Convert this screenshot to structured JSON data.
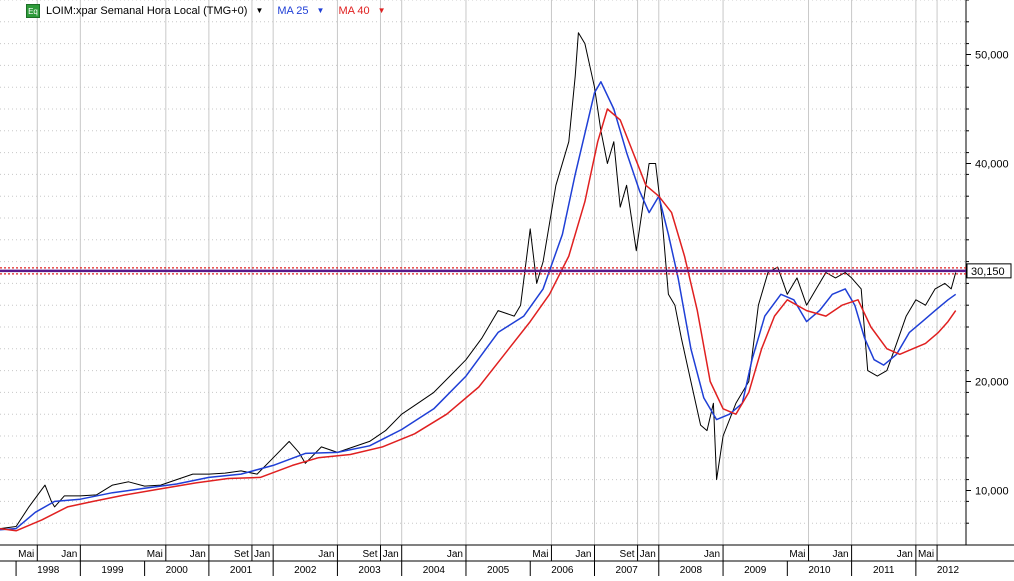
{
  "legend": {
    "icon_label": "Eq",
    "instrument": "LOIM:xpar Semanal Hora Local (TMG+0)",
    "ma25_label": "MA 25",
    "ma40_label": "MA 40",
    "caret": "▼"
  },
  "colors": {
    "price": "#000000",
    "ma25": "#1f3fd6",
    "ma40": "#e02020",
    "level_line": "#5a1a8a",
    "level_dots": "#e02020",
    "grid": "#c8c8c8",
    "level_label_bg": "#ffffff"
  },
  "chart_data": {
    "type": "line",
    "yscale": "linear",
    "ylim": [
      5000,
      55000
    ],
    "xlim": [
      1997.75,
      2012.78
    ],
    "y_ticks": [
      10000,
      20000,
      30000,
      40000,
      50000
    ],
    "y_tick_labels": [
      "10,000",
      "20,000",
      "30,000",
      "40,000",
      "50,000"
    ],
    "grid": true,
    "level": {
      "value": 30150,
      "label": "30,150"
    },
    "x_month_labels": [
      {
        "label": "Mai",
        "x": 1998.33
      },
      {
        "label": "Jan",
        "x": 1999.0
      },
      {
        "label": "Mai",
        "x": 2000.33
      },
      {
        "label": "Jan",
        "x": 2001.0
      },
      {
        "label": "Set",
        "x": 2001.67
      },
      {
        "label": "Jan",
        "x": 2002.0
      },
      {
        "label": "Jan",
        "x": 2003.0
      },
      {
        "label": "Set",
        "x": 2003.67
      },
      {
        "label": "Jan",
        "x": 2004.0
      },
      {
        "label": "Jan",
        "x": 2005.0
      },
      {
        "label": "Mai",
        "x": 2006.33
      },
      {
        "label": "Jan",
        "x": 2007.0
      },
      {
        "label": "Set",
        "x": 2007.67
      },
      {
        "label": "Jan",
        "x": 2008.0
      },
      {
        "label": "Jan",
        "x": 2009.0
      },
      {
        "label": "Mai",
        "x": 2010.33
      },
      {
        "label": "Jan",
        "x": 2011.0
      },
      {
        "label": "Jan",
        "x": 2012.0
      },
      {
        "label": "Mai",
        "x": 2012.33
      }
    ],
    "x_year_labels": [
      {
        "label": "1998",
        "x": 1998.0
      },
      {
        "label": "1999",
        "x": 1999.0
      },
      {
        "label": "2000",
        "x": 2000.0
      },
      {
        "label": "2001",
        "x": 2001.0
      },
      {
        "label": "2002",
        "x": 2002.0
      },
      {
        "label": "2003",
        "x": 2003.0
      },
      {
        "label": "2004",
        "x": 2004.0
      },
      {
        "label": "2005",
        "x": 2005.0
      },
      {
        "label": "2006",
        "x": 2006.0
      },
      {
        "label": "2007",
        "x": 2007.0
      },
      {
        "label": "2008",
        "x": 2008.0
      },
      {
        "label": "2009",
        "x": 2009.0
      },
      {
        "label": "2010",
        "x": 2010.0
      },
      {
        "label": "2011",
        "x": 2011.0
      },
      {
        "label": "2012",
        "x": 2012.0
      }
    ],
    "series": [
      {
        "name": "LOIM:xpar",
        "points": [
          [
            1997.75,
            6500
          ],
          [
            1998.0,
            6700
          ],
          [
            1998.2,
            8500
          ],
          [
            1998.45,
            10500
          ],
          [
            1998.55,
            9000
          ],
          [
            1998.6,
            8500
          ],
          [
            1998.75,
            9500
          ],
          [
            1999.0,
            9500
          ],
          [
            1999.25,
            9600
          ],
          [
            1999.5,
            10500
          ],
          [
            1999.75,
            10800
          ],
          [
            2000.0,
            10400
          ],
          [
            2000.25,
            10500
          ],
          [
            2000.5,
            11000
          ],
          [
            2000.75,
            11500
          ],
          [
            2001.0,
            11500
          ],
          [
            2001.25,
            11600
          ],
          [
            2001.5,
            11800
          ],
          [
            2001.75,
            11500
          ],
          [
            2002.0,
            13000
          ],
          [
            2002.25,
            14500
          ],
          [
            2002.4,
            13500
          ],
          [
            2002.5,
            12500
          ],
          [
            2002.75,
            14000
          ],
          [
            2003.0,
            13500
          ],
          [
            2003.25,
            14000
          ],
          [
            2003.5,
            14500
          ],
          [
            2003.75,
            15500
          ],
          [
            2004.0,
            17000
          ],
          [
            2004.25,
            18000
          ],
          [
            2004.5,
            19000
          ],
          [
            2004.75,
            20500
          ],
          [
            2005.0,
            22000
          ],
          [
            2005.25,
            24000
          ],
          [
            2005.5,
            26500
          ],
          [
            2005.75,
            26000
          ],
          [
            2005.85,
            27000
          ],
          [
            2006.0,
            34000
          ],
          [
            2006.1,
            29000
          ],
          [
            2006.2,
            31000
          ],
          [
            2006.4,
            38000
          ],
          [
            2006.6,
            42000
          ],
          [
            2006.7,
            48000
          ],
          [
            2006.75,
            52000
          ],
          [
            2006.85,
            51000
          ],
          [
            2007.0,
            47000
          ],
          [
            2007.1,
            43000
          ],
          [
            2007.2,
            40000
          ],
          [
            2007.3,
            42000
          ],
          [
            2007.4,
            36000
          ],
          [
            2007.5,
            38000
          ],
          [
            2007.65,
            32000
          ],
          [
            2007.75,
            36000
          ],
          [
            2007.85,
            40000
          ],
          [
            2007.95,
            40000
          ],
          [
            2008.05,
            35000
          ],
          [
            2008.15,
            28000
          ],
          [
            2008.25,
            27000
          ],
          [
            2008.35,
            24000
          ],
          [
            2008.5,
            20000
          ],
          [
            2008.65,
            16000
          ],
          [
            2008.75,
            15500
          ],
          [
            2008.85,
            18000
          ],
          [
            2008.9,
            11000
          ],
          [
            2009.0,
            15000
          ],
          [
            2009.2,
            18000
          ],
          [
            2009.4,
            20000
          ],
          [
            2009.55,
            27000
          ],
          [
            2009.7,
            30000
          ],
          [
            2009.85,
            30500
          ],
          [
            2010.0,
            28000
          ],
          [
            2010.15,
            29500
          ],
          [
            2010.3,
            27000
          ],
          [
            2010.45,
            28500
          ],
          [
            2010.6,
            30000
          ],
          [
            2010.75,
            29500
          ],
          [
            2010.9,
            30000
          ],
          [
            2011.0,
            29500
          ],
          [
            2011.15,
            28500
          ],
          [
            2011.25,
            21000
          ],
          [
            2011.4,
            20500
          ],
          [
            2011.55,
            21000
          ],
          [
            2011.7,
            23500
          ],
          [
            2011.85,
            26000
          ],
          [
            2012.0,
            27500
          ],
          [
            2012.15,
            27000
          ],
          [
            2012.3,
            28500
          ],
          [
            2012.45,
            29000
          ],
          [
            2012.55,
            28500
          ],
          [
            2012.62,
            30000
          ]
        ]
      },
      {
        "name": "MA 25",
        "points": [
          [
            1997.75,
            6400
          ],
          [
            1998.0,
            6500
          ],
          [
            1998.3,
            8000
          ],
          [
            1998.6,
            9000
          ],
          [
            1999.0,
            9200
          ],
          [
            1999.5,
            9800
          ],
          [
            2000.0,
            10200
          ],
          [
            2000.5,
            10600
          ],
          [
            2001.0,
            11200
          ],
          [
            2001.5,
            11500
          ],
          [
            2002.0,
            12300
          ],
          [
            2002.5,
            13400
          ],
          [
            2003.0,
            13500
          ],
          [
            2003.5,
            14100
          ],
          [
            2004.0,
            15600
          ],
          [
            2004.5,
            17500
          ],
          [
            2005.0,
            20500
          ],
          [
            2005.5,
            24500
          ],
          [
            2005.9,
            26000
          ],
          [
            2006.2,
            28500
          ],
          [
            2006.5,
            33500
          ],
          [
            2006.7,
            39000
          ],
          [
            2006.9,
            44000
          ],
          [
            2007.0,
            46500
          ],
          [
            2007.1,
            47500
          ],
          [
            2007.3,
            45000
          ],
          [
            2007.5,
            41000
          ],
          [
            2007.7,
            37500
          ],
          [
            2007.85,
            35500
          ],
          [
            2008.0,
            37000
          ],
          [
            2008.15,
            33500
          ],
          [
            2008.3,
            29500
          ],
          [
            2008.5,
            23000
          ],
          [
            2008.7,
            18500
          ],
          [
            2008.9,
            16500
          ],
          [
            2009.1,
            17000
          ],
          [
            2009.3,
            18000
          ],
          [
            2009.45,
            22000
          ],
          [
            2009.65,
            26000
          ],
          [
            2009.9,
            28000
          ],
          [
            2010.1,
            27500
          ],
          [
            2010.3,
            25500
          ],
          [
            2010.5,
            26500
          ],
          [
            2010.7,
            28000
          ],
          [
            2010.9,
            28500
          ],
          [
            2011.05,
            27000
          ],
          [
            2011.2,
            24000
          ],
          [
            2011.35,
            22000
          ],
          [
            2011.5,
            21500
          ],
          [
            2011.7,
            22500
          ],
          [
            2011.9,
            24500
          ],
          [
            2012.1,
            25500
          ],
          [
            2012.3,
            26500
          ],
          [
            2012.5,
            27500
          ],
          [
            2012.62,
            28000
          ]
        ]
      },
      {
        "name": "MA 40",
        "points": [
          [
            1997.75,
            6500
          ],
          [
            1998.0,
            6300
          ],
          [
            1998.4,
            7300
          ],
          [
            1998.8,
            8500
          ],
          [
            1999.2,
            9000
          ],
          [
            1999.7,
            9600
          ],
          [
            2000.2,
            10100
          ],
          [
            2000.8,
            10700
          ],
          [
            2001.3,
            11100
          ],
          [
            2001.8,
            11200
          ],
          [
            2002.3,
            12300
          ],
          [
            2002.7,
            13000
          ],
          [
            2003.2,
            13300
          ],
          [
            2003.7,
            14000
          ],
          [
            2004.2,
            15200
          ],
          [
            2004.7,
            17000
          ],
          [
            2005.2,
            19500
          ],
          [
            2005.6,
            22500
          ],
          [
            2006.0,
            25500
          ],
          [
            2006.3,
            28000
          ],
          [
            2006.6,
            31500
          ],
          [
            2006.85,
            36500
          ],
          [
            2007.05,
            42000
          ],
          [
            2007.2,
            45000
          ],
          [
            2007.4,
            44000
          ],
          [
            2007.6,
            41000
          ],
          [
            2007.8,
            38000
          ],
          [
            2008.0,
            37000
          ],
          [
            2008.2,
            35500
          ],
          [
            2008.4,
            31500
          ],
          [
            2008.6,
            26500
          ],
          [
            2008.8,
            20000
          ],
          [
            2009.0,
            17500
          ],
          [
            2009.2,
            17000
          ],
          [
            2009.4,
            19000
          ],
          [
            2009.6,
            23000
          ],
          [
            2009.8,
            26000
          ],
          [
            2010.0,
            27500
          ],
          [
            2010.3,
            26500
          ],
          [
            2010.6,
            26000
          ],
          [
            2010.85,
            27000
          ],
          [
            2011.1,
            27500
          ],
          [
            2011.3,
            25000
          ],
          [
            2011.55,
            23000
          ],
          [
            2011.75,
            22500
          ],
          [
            2011.95,
            23000
          ],
          [
            2012.15,
            23500
          ],
          [
            2012.35,
            24500
          ],
          [
            2012.5,
            25500
          ],
          [
            2012.62,
            26500
          ]
        ]
      }
    ]
  }
}
